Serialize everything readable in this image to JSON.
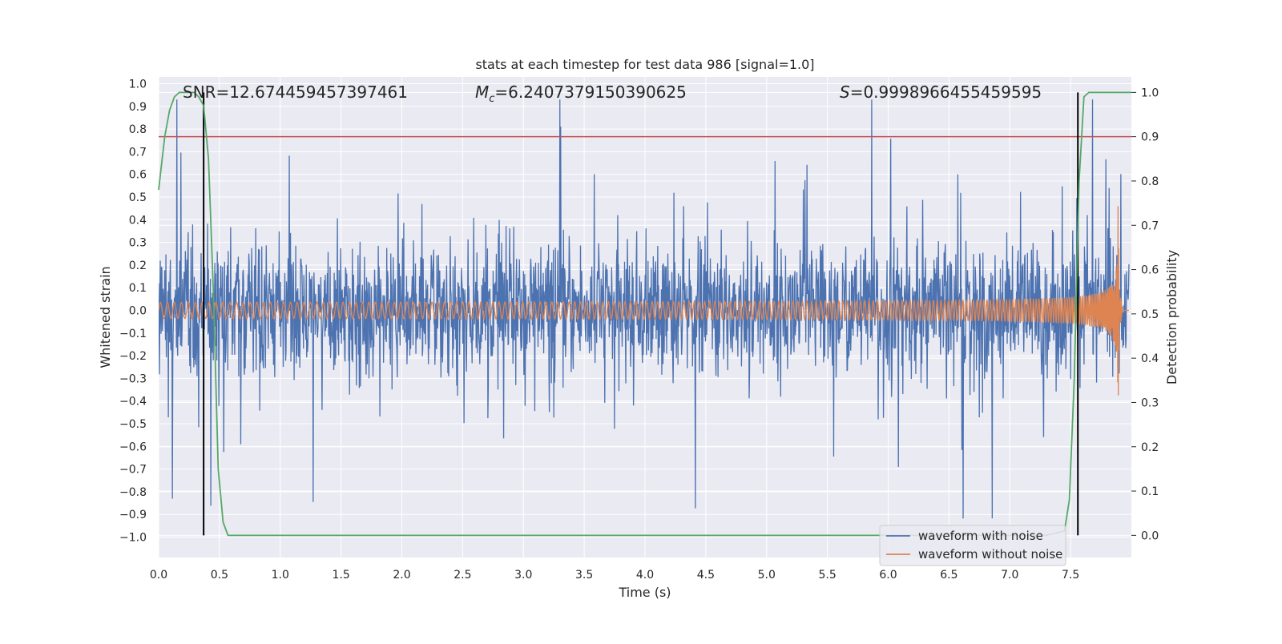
{
  "chart_data": {
    "type": "line",
    "title": "stats at each timestep for test data 986 [signal=1.0]",
    "xlabel": "Time (s)",
    "ylabel_left": "Whitened strain",
    "ylabel_right": "Detection probability",
    "xlim": [
      0.0,
      8.0
    ],
    "ylim_left": [
      -1.09,
      1.03
    ],
    "ylim_right": [
      -0.05,
      1.035
    ],
    "x_ticks": [
      0.0,
      0.5,
      1.0,
      1.5,
      2.0,
      2.5,
      3.0,
      3.5,
      4.0,
      4.5,
      5.0,
      5.5,
      6.0,
      6.5,
      7.0,
      7.5
    ],
    "y_ticks_left": [
      1.0,
      0.9,
      0.8,
      0.7,
      0.6,
      0.5,
      0.4,
      0.3,
      0.2,
      0.1,
      0.0,
      -0.1,
      -0.2,
      -0.3,
      -0.4,
      -0.5,
      -0.6,
      -0.7,
      -0.8,
      -0.9,
      -1.0
    ],
    "y_ticks_right": [
      1.0,
      0.9,
      0.8,
      0.7,
      0.6,
      0.5,
      0.4,
      0.3,
      0.2,
      0.1,
      0.0
    ],
    "grid": true,
    "legend_position": "lower-right",
    "annotations": {
      "snr": "SNR=12.674459457397461",
      "mc": "=6.2407379150390625",
      "mc_symbol": "M",
      "mc_subscript": "c",
      "s": "=0.9998966455459595",
      "s_symbol": "S"
    },
    "series": [
      {
        "name": "waveform with noise",
        "color": "#4c72b0",
        "axis": "left",
        "description_values": {
          "x_range": [
            0.0,
            7.98
          ],
          "core_band": [
            -0.3,
            0.35
          ],
          "peak_max": 0.93,
          "peak_min": -1.0
        }
      },
      {
        "name": "waveform without noise",
        "color": "#dd8452",
        "axis": "left",
        "description_values": {
          "x_range": [
            0.0,
            7.98
          ],
          "amplitude_start": 0.03,
          "amplitude_peak": 0.48,
          "merger_time": 7.89,
          "ringdown_end": 7.93
        }
      },
      {
        "name": "Detection probability",
        "color": "#55a868",
        "axis": "right",
        "x": [
          0.0,
          0.05,
          0.09,
          0.13,
          0.17,
          0.21,
          0.25,
          0.29,
          0.33,
          0.37,
          0.41,
          0.45,
          0.49,
          0.53,
          0.57,
          0.63,
          0.7,
          1.0,
          2.0,
          3.0,
          4.0,
          5.0,
          6.0,
          7.0,
          7.3,
          7.45,
          7.49,
          7.53,
          7.57,
          7.61,
          7.65,
          7.72,
          8.0
        ],
        "values": [
          0.78,
          0.9,
          0.96,
          0.99,
          1.0,
          1.0,
          1.0,
          1.0,
          0.99,
          0.97,
          0.85,
          0.55,
          0.15,
          0.03,
          0.0,
          0.0,
          0.0,
          0.0,
          0.0,
          0.0,
          0.0,
          0.0,
          0.0,
          0.0,
          0.0,
          0.01,
          0.08,
          0.35,
          0.8,
          0.99,
          1.0,
          1.0,
          1.0
        ]
      }
    ],
    "threshold_line": {
      "value": 0.9,
      "axis": "right",
      "color": "#c44e52"
    },
    "vertical_markers": {
      "x": [
        0.37,
        7.56
      ],
      "y_range_right": [
        0.0,
        1.0
      ],
      "color": "#000000"
    }
  }
}
